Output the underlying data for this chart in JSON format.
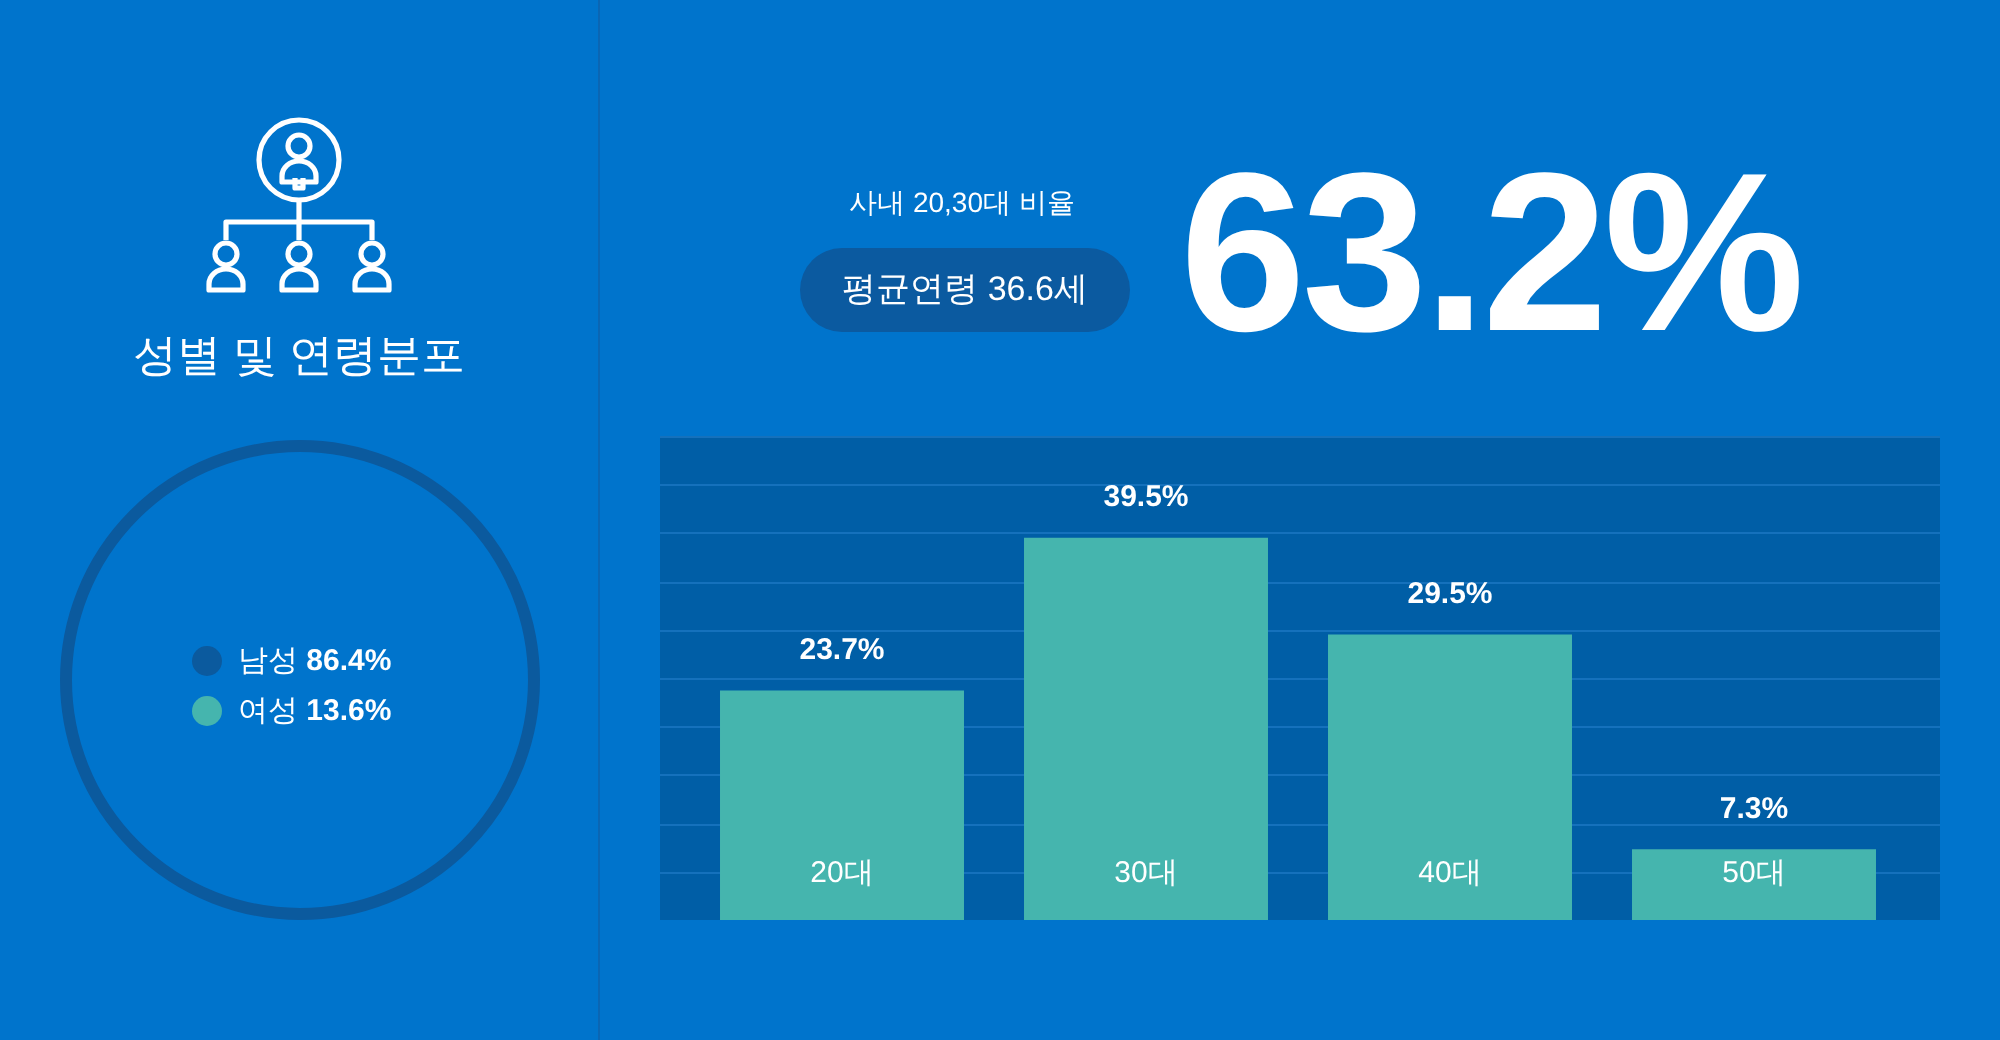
{
  "chart_data": [
    {
      "type": "other",
      "title": "성별 및 연령분포",
      "categories": [
        "남성",
        "여성"
      ],
      "colors": [
        "#0b5a9e",
        "#45b5ae"
      ],
      "value_labels": [
        "86.4%",
        "13.6%"
      ]
    },
    {
      "type": "bar",
      "categories": [
        "20대",
        "30대",
        "40대",
        "50대"
      ],
      "values": [
        23.7,
        39.5,
        29.5,
        7.3
      ],
      "color": "#45b5ae",
      "value_labels": [
        "23.7%",
        "39.5%",
        "29.5%",
        "7.3%"
      ],
      "ylim": [
        0,
        50
      ],
      "yticks": [
        {
          "value": 0,
          "label": null
        },
        {
          "value": 5,
          "label": null
        },
        {
          "value": 10,
          "label": null
        },
        {
          "value": 15,
          "label": null
        },
        {
          "value": 20,
          "label": null
        },
        {
          "value": 25,
          "label": null
        },
        {
          "value": 30,
          "label": null
        },
        {
          "value": 35,
          "label": null
        },
        {
          "value": 40,
          "label": null
        },
        {
          "value": 45,
          "label": null
        },
        {
          "value": 50,
          "label": null
        }
      ],
      "grid": "y",
      "tick_labels": "x",
      "annotations": [
        "사내 20,30대 비율",
        "평균연령 36.6세",
        "63.2%"
      ]
    }
  ]
}
